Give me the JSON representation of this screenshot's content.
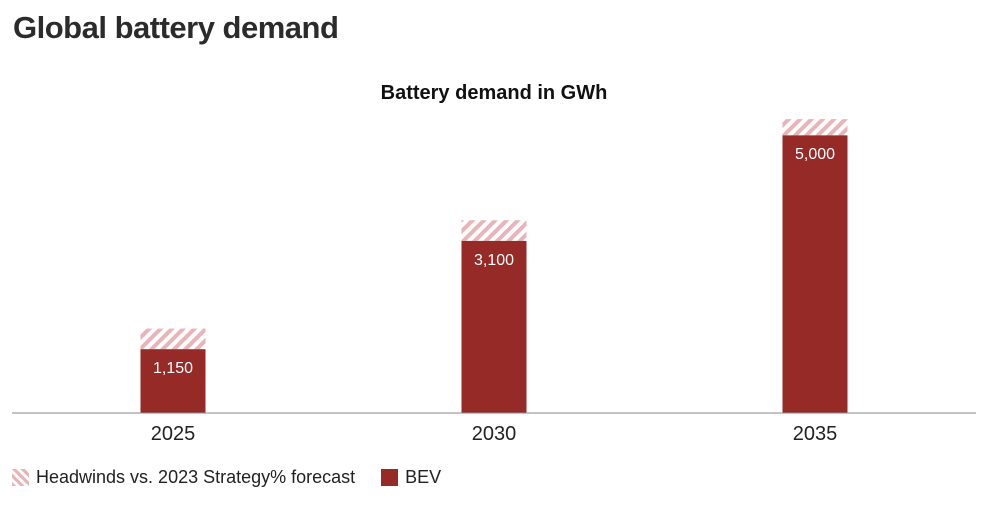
{
  "page": {
    "title": "Global battery demand"
  },
  "chart_data": {
    "type": "bar",
    "title": "Battery demand in GWh",
    "xlabel": "",
    "ylabel": "",
    "categories": [
      "2025",
      "2030",
      "2035"
    ],
    "series": [
      {
        "name": "BEV",
        "values": [
          1150,
          3100,
          5000
        ],
        "labels": [
          "1,150",
          "3,100",
          "5,000"
        ],
        "color": "#962a27"
      },
      {
        "name": "Headwinds vs. 2023 Strategy% forecast",
        "values": [
          370,
          370,
          290
        ],
        "color": "#e8b4b8",
        "pattern": "diagonal-stripes"
      }
    ],
    "ylim": [
      0,
      5400
    ],
    "grid": false,
    "legend": "bottom-left"
  },
  "legend": {
    "items": [
      {
        "label": "Headwinds vs. 2023 Strategy% forecast",
        "swatch": "hatched-pink"
      },
      {
        "label": "BEV",
        "swatch": "dark-red"
      }
    ]
  }
}
